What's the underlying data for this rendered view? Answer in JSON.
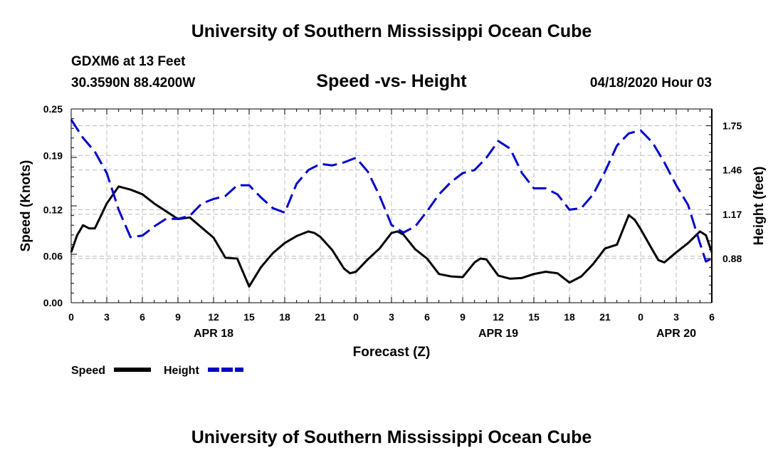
{
  "header": {
    "title": "University of Southern Mississippi Ocean Cube",
    "station": "GDXM6 at 13 Feet",
    "coords": "30.3590N 88.4200W",
    "subtitle": "Speed -vs- Height",
    "datetime": "04/18/2020 Hour 03"
  },
  "footer": {
    "title": "University of Southern Mississippi Ocean Cube"
  },
  "chart_data": {
    "type": "line",
    "xlabel": "Forecast (Z)",
    "ylabel_left": "Speed (Knots)",
    "ylabel_right": "Height (feet)",
    "x_range": [
      0,
      54
    ],
    "x_ticks": [
      0,
      3,
      6,
      9,
      12,
      15,
      18,
      21,
      24,
      27,
      30,
      33,
      36,
      39,
      42,
      45,
      48,
      51,
      54
    ],
    "x_tick_labels": [
      "0",
      "3",
      "6",
      "9",
      "12",
      "15",
      "18",
      "21",
      "0",
      "3",
      "6",
      "9",
      "12",
      "15",
      "18",
      "21",
      "0",
      "3",
      "6"
    ],
    "date_labels": [
      {
        "x": 12,
        "label": "APR 18"
      },
      {
        "x": 36,
        "label": "APR 19"
      },
      {
        "x": 51,
        "label": "APR 20"
      }
    ],
    "y_left": {
      "range": [
        0,
        0.25
      ],
      "ticks": [
        0.0,
        0.06,
        0.12,
        0.19,
        0.25
      ],
      "tick_labels": [
        "0.00",
        "0.06",
        "0.12",
        "0.19",
        "0.25"
      ]
    },
    "y_right": {
      "range": [
        0.59,
        1.86
      ],
      "ticks": [
        0.88,
        1.17,
        1.46,
        1.75
      ],
      "tick_labels": [
        "0.88",
        "1.17",
        "1.46",
        "1.75"
      ]
    },
    "grid": true,
    "series": [
      {
        "name": "Speed",
        "axis": "left",
        "color": "#000000",
        "dash": "solid",
        "points": [
          [
            0,
            0.065
          ],
          [
            0.5,
            0.087
          ],
          [
            1,
            0.1
          ],
          [
            1.5,
            0.096
          ],
          [
            2,
            0.096
          ],
          [
            3,
            0.128
          ],
          [
            4,
            0.15
          ],
          [
            5,
            0.146
          ],
          [
            6,
            0.14
          ],
          [
            7,
            0.128
          ],
          [
            8,
            0.118
          ],
          [
            9,
            0.108
          ],
          [
            10,
            0.11
          ],
          [
            11,
            0.097
          ],
          [
            12,
            0.084
          ],
          [
            13,
            0.058
          ],
          [
            14,
            0.057
          ],
          [
            15,
            0.021
          ],
          [
            16,
            0.046
          ],
          [
            17,
            0.064
          ],
          [
            18,
            0.077
          ],
          [
            19,
            0.086
          ],
          [
            20,
            0.092
          ],
          [
            20.5,
            0.09
          ],
          [
            21,
            0.085
          ],
          [
            22,
            0.068
          ],
          [
            23,
            0.044
          ],
          [
            23.5,
            0.038
          ],
          [
            24,
            0.04
          ],
          [
            25,
            0.056
          ],
          [
            26,
            0.07
          ],
          [
            27,
            0.09
          ],
          [
            27.5,
            0.092
          ],
          [
            28,
            0.088
          ],
          [
            29,
            0.069
          ],
          [
            30,
            0.057
          ],
          [
            31,
            0.037
          ],
          [
            32,
            0.034
          ],
          [
            33,
            0.033
          ],
          [
            34,
            0.052
          ],
          [
            34.5,
            0.057
          ],
          [
            35,
            0.056
          ],
          [
            36,
            0.035
          ],
          [
            37,
            0.031
          ],
          [
            38,
            0.032
          ],
          [
            39,
            0.037
          ],
          [
            40,
            0.04
          ],
          [
            41,
            0.038
          ],
          [
            42,
            0.026
          ],
          [
            43,
            0.034
          ],
          [
            44,
            0.05
          ],
          [
            45,
            0.07
          ],
          [
            46,
            0.075
          ],
          [
            47,
            0.113
          ],
          [
            47.5,
            0.107
          ],
          [
            48,
            0.095
          ],
          [
            49,
            0.068
          ],
          [
            49.5,
            0.055
          ],
          [
            50,
            0.052
          ],
          [
            51,
            0.065
          ],
          [
            52,
            0.077
          ],
          [
            53,
            0.092
          ],
          [
            53.5,
            0.087
          ],
          [
            54,
            0.065
          ]
        ]
      },
      {
        "name": "Height",
        "axis": "right",
        "color": "#0000cc",
        "dash": "dashed",
        "points": [
          [
            0,
            1.79
          ],
          [
            1,
            1.67
          ],
          [
            2,
            1.58
          ],
          [
            3,
            1.44
          ],
          [
            4,
            1.2
          ],
          [
            5,
            1.02
          ],
          [
            6,
            1.03
          ],
          [
            7,
            1.09
          ],
          [
            8,
            1.14
          ],
          [
            9,
            1.14
          ],
          [
            10,
            1.16
          ],
          [
            11,
            1.24
          ],
          [
            12,
            1.27
          ],
          [
            13,
            1.29
          ],
          [
            14,
            1.36
          ],
          [
            15,
            1.36
          ],
          [
            16,
            1.28
          ],
          [
            17,
            1.21
          ],
          [
            18,
            1.18
          ],
          [
            19,
            1.37
          ],
          [
            20,
            1.46
          ],
          [
            21,
            1.5
          ],
          [
            22,
            1.49
          ],
          [
            23,
            1.51
          ],
          [
            24,
            1.54
          ],
          [
            25,
            1.45
          ],
          [
            26,
            1.29
          ],
          [
            27,
            1.1
          ],
          [
            28,
            1.05
          ],
          [
            29,
            1.09
          ],
          [
            30,
            1.19
          ],
          [
            31,
            1.3
          ],
          [
            32,
            1.38
          ],
          [
            33,
            1.44
          ],
          [
            34,
            1.46
          ],
          [
            35,
            1.54
          ],
          [
            36,
            1.65
          ],
          [
            37,
            1.6
          ],
          [
            38,
            1.44
          ],
          [
            39,
            1.34
          ],
          [
            40,
            1.34
          ],
          [
            41,
            1.3
          ],
          [
            42,
            1.2
          ],
          [
            43,
            1.21
          ],
          [
            44,
            1.3
          ],
          [
            45,
            1.45
          ],
          [
            46,
            1.62
          ],
          [
            47,
            1.7
          ],
          [
            48,
            1.72
          ],
          [
            49,
            1.64
          ],
          [
            50,
            1.51
          ],
          [
            51,
            1.36
          ],
          [
            52,
            1.23
          ],
          [
            53,
            0.98
          ],
          [
            53.5,
            0.86
          ],
          [
            54,
            0.88
          ]
        ]
      }
    ],
    "legend": [
      {
        "label": "Speed",
        "color": "#000000",
        "dash": "solid"
      },
      {
        "label": "Height",
        "color": "#0000cc",
        "dash": "dashed"
      }
    ]
  }
}
